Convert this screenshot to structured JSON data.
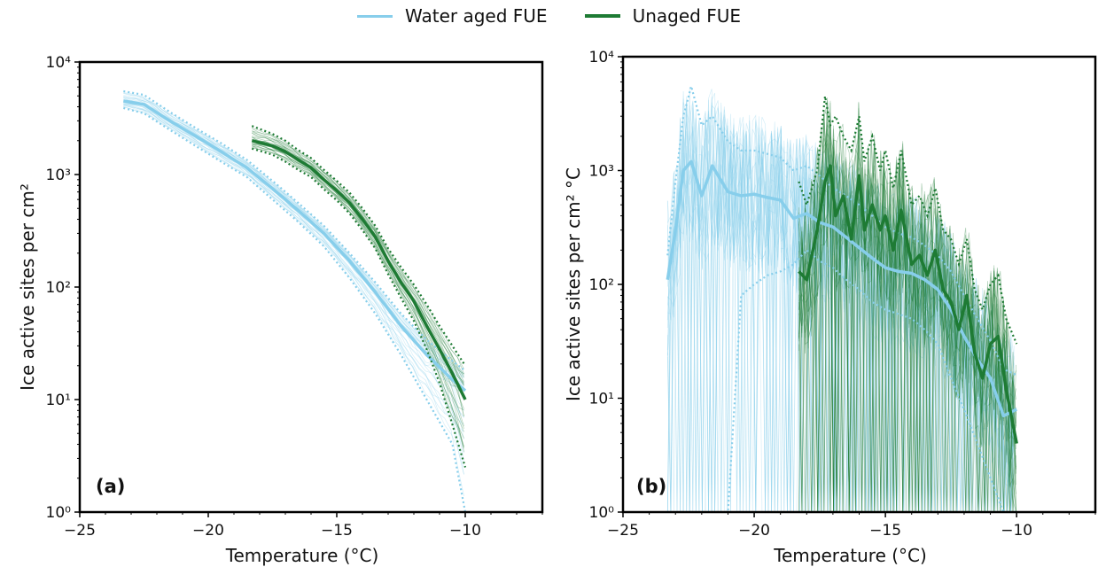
{
  "legend": {
    "placement": "top-center",
    "entries": [
      {
        "label": "Water aged FUE",
        "color": "#87ceeb"
      },
      {
        "label": "Unaged FUE",
        "color": "#1e7b34"
      }
    ]
  },
  "chart_data": [
    {
      "type": "line",
      "panel_label": "(a)",
      "xlabel": "Temperature (°C)",
      "ylabel": "Ice active sites per cm²",
      "xlim": [
        -25,
        -7
      ],
      "ylim": [
        1,
        10000
      ],
      "yscale": "log",
      "x_ticks": [
        "−25",
        "−20",
        "−15",
        "−10"
      ],
      "y_ticks": [
        "10⁰",
        "10¹",
        "10²",
        "10³",
        "10⁴"
      ],
      "grid": false,
      "series": [
        {
          "name": "Water aged FUE",
          "color": "#87ceeb",
          "x": [
            -23.3,
            -22.5,
            -21.5,
            -20.5,
            -19.5,
            -18.5,
            -17.5,
            -16.5,
            -15.5,
            -14.5,
            -13.5,
            -12.5,
            -11.5,
            -10.5,
            -10.0
          ],
          "values": [
            4500,
            4200,
            3000,
            2200,
            1600,
            1150,
            750,
            480,
            300,
            170,
            90,
            45,
            25,
            15,
            12
          ],
          "upper": [
            5500,
            5100,
            3600,
            2600,
            1900,
            1350,
            880,
            560,
            350,
            200,
            110,
            58,
            34,
            22,
            18
          ],
          "lower": [
            3900,
            3500,
            2500,
            1800,
            1300,
            950,
            600,
            380,
            230,
            120,
            58,
            25,
            10,
            4,
            1
          ]
        },
        {
          "name": "Unaged FUE",
          "color": "#1e7b34",
          "x": [
            -18.3,
            -17.5,
            -17.0,
            -16.5,
            -16.0,
            -15.5,
            -15.0,
            -14.5,
            -14.0,
            -13.5,
            -13.0,
            -12.5,
            -12.0,
            -11.5,
            -11.0,
            -10.5,
            -10.0
          ],
          "values": [
            2000,
            1800,
            1600,
            1350,
            1150,
            900,
            720,
            560,
            400,
            280,
            170,
            110,
            75,
            45,
            28,
            17,
            10
          ],
          "upper": [
            2700,
            2300,
            2000,
            1650,
            1400,
            1100,
            880,
            690,
            500,
            350,
            220,
            150,
            105,
            70,
            45,
            30,
            20
          ],
          "lower": [
            1700,
            1500,
            1300,
            1100,
            950,
            740,
            590,
            450,
            320,
            220,
            130,
            80,
            50,
            28,
            14,
            6,
            2.5
          ]
        }
      ]
    },
    {
      "type": "line",
      "panel_label": "(b)",
      "xlabel": "Temperature (°C)",
      "ylabel": "Ice active sites per cm² °C",
      "xlim": [
        -25,
        -7
      ],
      "ylim": [
        1,
        10000
      ],
      "yscale": "log",
      "x_ticks": [
        "−25",
        "−20",
        "−15",
        "−10"
      ],
      "y_ticks": [
        "10⁰",
        "10¹",
        "10²",
        "10³",
        "10⁴"
      ],
      "grid": false,
      "series": [
        {
          "name": "Water aged FUE",
          "color": "#87ceeb",
          "x": [
            -23.3,
            -23.0,
            -22.7,
            -22.4,
            -22.0,
            -21.6,
            -21.0,
            -20.5,
            -20.0,
            -19.5,
            -19.0,
            -18.5,
            -18.0,
            -17.5,
            -17.0,
            -16.5,
            -16.0,
            -15.5,
            -15.0,
            -14.5,
            -14.0,
            -13.5,
            -13.0,
            -12.5,
            -12.0,
            -11.5,
            -11.0,
            -10.5,
            -10.0
          ],
          "values": [
            110,
            300,
            1000,
            1200,
            600,
            1100,
            650,
            600,
            620,
            580,
            550,
            380,
            420,
            350,
            320,
            260,
            210,
            170,
            140,
            130,
            125,
            110,
            90,
            60,
            35,
            22,
            15,
            7,
            8
          ],
          "upper": [
            180,
            800,
            3000,
            5500,
            2500,
            3000,
            1800,
            1500,
            1500,
            1400,
            1300,
            1000,
            1100,
            900,
            700,
            600,
            500,
            400,
            320,
            280,
            260,
            220,
            180,
            130,
            80,
            50,
            32,
            18,
            16
          ],
          "lower": [
            1,
            1,
            1,
            1,
            1,
            1,
            1,
            80,
            100,
            120,
            130,
            150,
            200,
            160,
            140,
            110,
            90,
            70,
            60,
            55,
            50,
            40,
            30,
            15,
            8,
            4,
            2,
            1,
            1
          ]
        },
        {
          "name": "Unaged FUE",
          "color": "#1e7b34",
          "x": [
            -18.3,
            -18.0,
            -17.6,
            -17.3,
            -17.1,
            -16.9,
            -16.6,
            -16.3,
            -16.0,
            -15.8,
            -15.5,
            -15.2,
            -15.0,
            -14.7,
            -14.4,
            -14.0,
            -13.7,
            -13.4,
            -13.1,
            -12.8,
            -12.5,
            -12.2,
            -11.9,
            -11.6,
            -11.3,
            -11.0,
            -10.7,
            -10.4,
            -10.0
          ],
          "values": [
            130,
            110,
            300,
            800,
            1100,
            400,
            600,
            250,
            900,
            300,
            500,
            300,
            400,
            200,
            450,
            150,
            180,
            120,
            200,
            90,
            70,
            40,
            80,
            25,
            15,
            30,
            35,
            12,
            4
          ],
          "upper": [
            800,
            500,
            1000,
            4500,
            2500,
            3000,
            2000,
            1500,
            3000,
            1200,
            2000,
            1000,
            1500,
            700,
            1500,
            500,
            600,
            400,
            700,
            300,
            250,
            150,
            250,
            90,
            60,
            100,
            120,
            50,
            30
          ],
          "lower": [
            1,
            1,
            1,
            1,
            1,
            1,
            1,
            1,
            1,
            1,
            1,
            1,
            1,
            1,
            1,
            1,
            1,
            1,
            1,
            1,
            1,
            1,
            1,
            1,
            1,
            1,
            1,
            1,
            1
          ]
        }
      ]
    }
  ]
}
